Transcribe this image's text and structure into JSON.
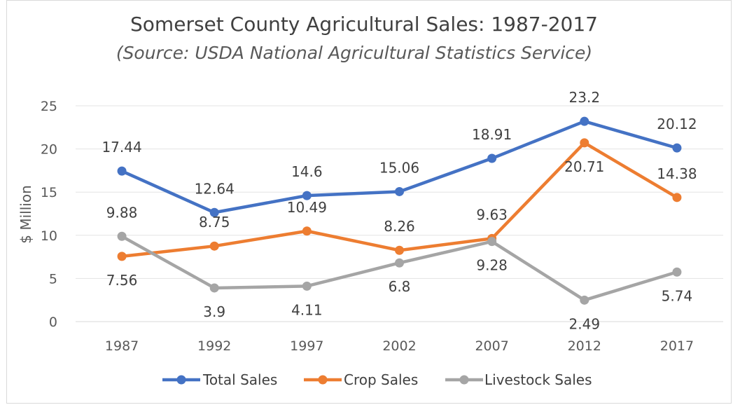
{
  "chart_data": {
    "type": "line",
    "title": "Somerset County Agricultural Sales: 1987-2017",
    "subtitle": "(Source: USDA National Agricultural Statistics Service)",
    "xlabel": "",
    "ylabel": "$ Million",
    "categories": [
      "1987",
      "1992",
      "1997",
      "2002",
      "2007",
      "2012",
      "2017"
    ],
    "ylim": [
      0,
      25
    ],
    "yticks": [
      0,
      5,
      10,
      15,
      20,
      25
    ],
    "grid": true,
    "legend": "bottom",
    "series": [
      {
        "name": "Total Sales",
        "color": "#4472c4",
        "values": [
          17.44,
          12.64,
          14.6,
          15.06,
          18.91,
          23.2,
          20.12
        ]
      },
      {
        "name": "Crop Sales",
        "color": "#ed7d31",
        "values": [
          7.56,
          8.75,
          10.49,
          8.26,
          9.63,
          20.71,
          14.38
        ]
      },
      {
        "name": "Livestock Sales",
        "color": "#a5a5a5",
        "values": [
          9.88,
          3.9,
          4.11,
          6.8,
          9.28,
          2.49,
          5.74
        ]
      }
    ]
  }
}
